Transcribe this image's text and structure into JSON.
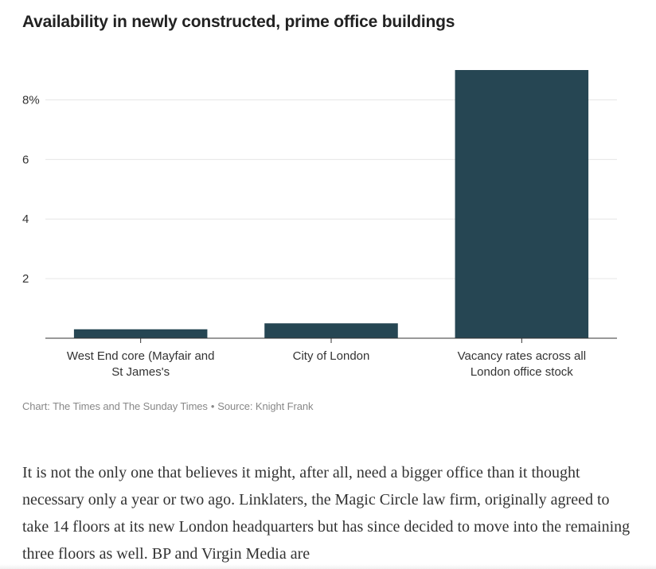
{
  "chart_data": {
    "type": "bar",
    "title": "Availability in newly constructed, prime office buildings",
    "categories": [
      [
        "West End core (Mayfair and",
        "St James's"
      ],
      [
        "City of London"
      ],
      [
        "Vacancy rates across all",
        "London office stock"
      ]
    ],
    "values": [
      0.3,
      0.5,
      9.0
    ],
    "ylim": [
      0,
      9
    ],
    "yticks": [
      2,
      4,
      6,
      8
    ],
    "ytick_labels": [
      "2",
      "4",
      "6",
      "8%"
    ],
    "xlabel": "",
    "ylabel": "",
    "grid": true,
    "bar_color": "#264653"
  },
  "credit": {
    "chart_by": "Chart: The Times and The Sunday Times",
    "separator": "•",
    "source": "Source: Knight Frank"
  },
  "article": {
    "text": "It is not the only one that believes it might, after all, need a bigger office than it thought necessary only a year or two ago. Linklaters, the Magic Circle law firm, originally agreed to take 14 floors at its new London headquarters but has since decided to move into the remaining three floors as well. BP and Virgin Media are"
  }
}
